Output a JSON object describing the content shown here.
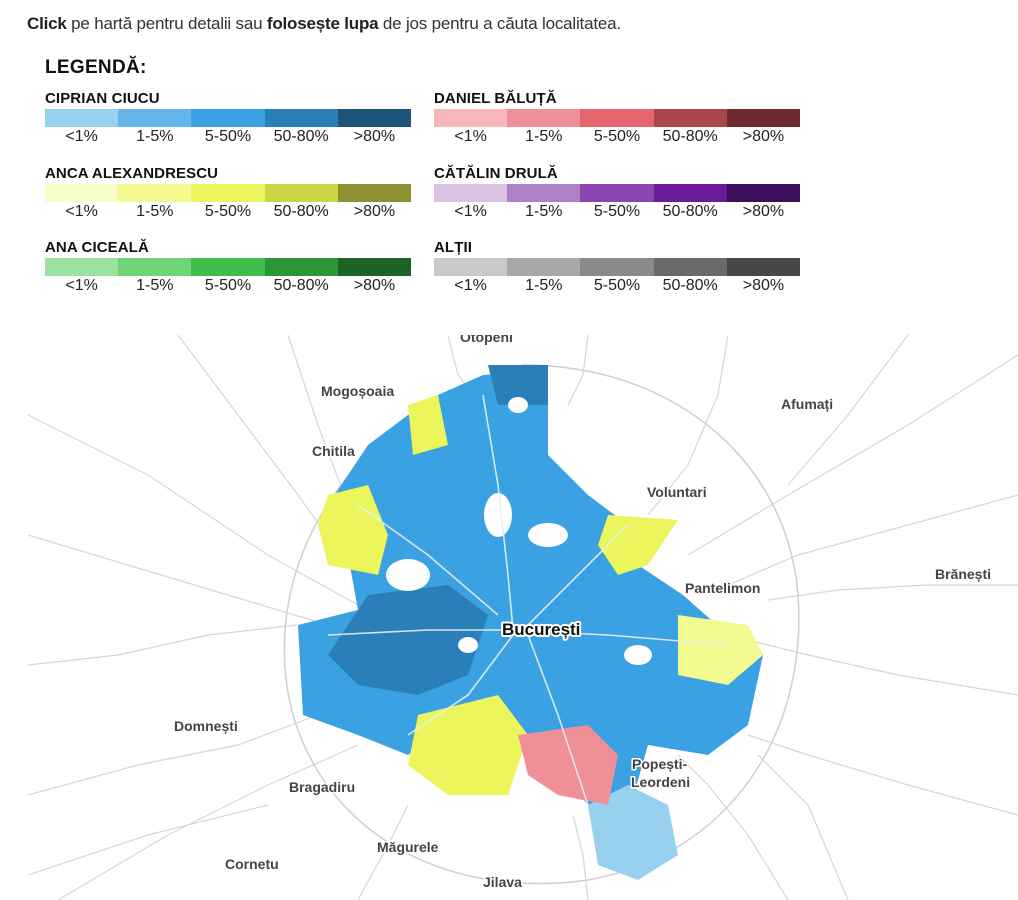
{
  "intro": {
    "part1": "Click",
    "part2": " pe hartă pentru detalii sau ",
    "part3": "folosește lupa",
    "part4": " de jos pentru a căuta localitatea."
  },
  "legend": {
    "title": "LEGENDĂ:",
    "ticks": [
      "<1%",
      "1-5%",
      "5-50%",
      "50-80%",
      ">80%"
    ],
    "candidates": [
      {
        "name": "CIPRIAN CIUCU",
        "colors": [
          "#98d0ef",
          "#63b6e9",
          "#3aa1e2",
          "#2a7fb8",
          "#1d5478"
        ]
      },
      {
        "name": "DANIEL BĂLUȚĂ",
        "colors": [
          "#f5b7bc",
          "#ef8f97",
          "#e5646e",
          "#a9454c",
          "#6e2c30"
        ]
      },
      {
        "name": "ANCA ALEXANDRESCU",
        "colors": [
          "#f8fdc7",
          "#f3fa90",
          "#ebf65d",
          "#c9d746",
          "#8b9130"
        ]
      },
      {
        "name": "CĂTĂLIN DRULĂ",
        "colors": [
          "#d8c3e3",
          "#ad80c8",
          "#8a45b3",
          "#6a1b9a",
          "#3e0f5c"
        ]
      },
      {
        "name": "ANA CICEALĂ",
        "colors": [
          "#9be29f",
          "#6fd477",
          "#3fbf4a",
          "#2b9636",
          "#1d6226"
        ]
      },
      {
        "name": "ALȚII",
        "colors": [
          "#c9c9c9",
          "#a8a8a8",
          "#8a8a8a",
          "#6a6a6a",
          "#474747"
        ]
      }
    ]
  },
  "map": {
    "labels": [
      "Otopeni",
      "Mogoșoaia",
      "Afumați",
      "Chitila",
      "Voluntari",
      "Pantelimon",
      "Brănești",
      "București",
      "Domnești",
      "Popești-",
      "Leordeni",
      "Bragadiru",
      "Măgurele",
      "Cornetu",
      "Jilava"
    ]
  }
}
